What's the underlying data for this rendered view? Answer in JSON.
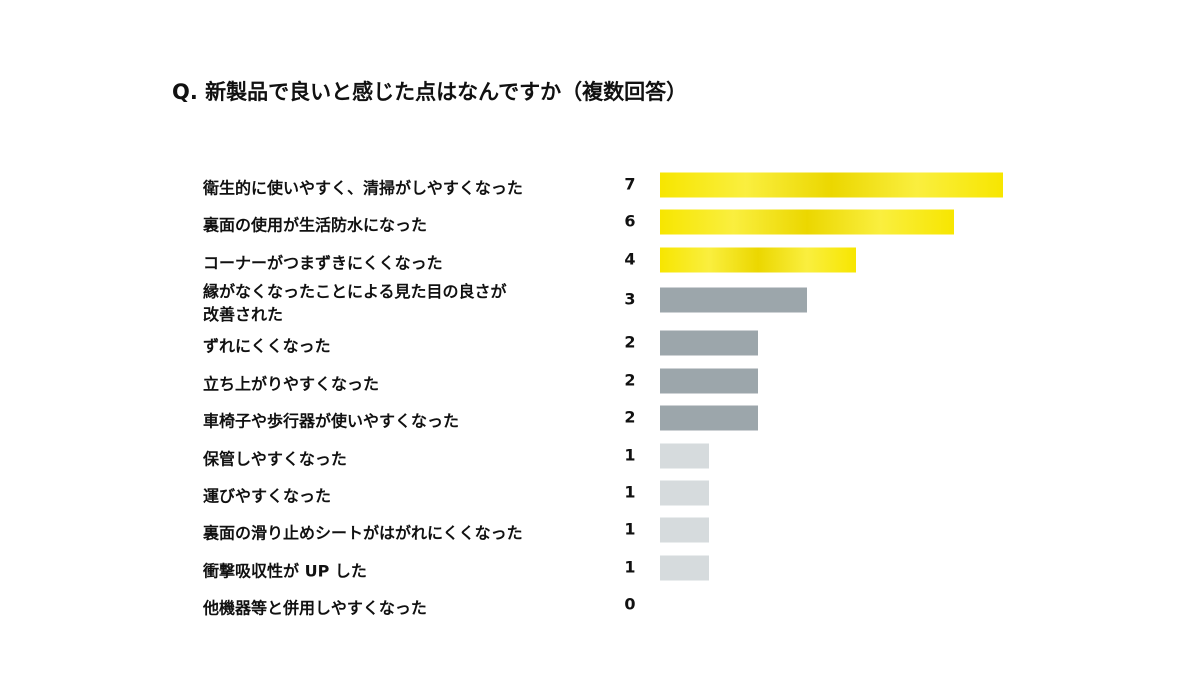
{
  "chart_data": {
    "type": "bar",
    "orientation": "horizontal",
    "title": "Q. 新製品で良いと感じた点はなんですか（複数回答）",
    "categories": [
      "衛生的に使いやすく、清掃がしやすくなった",
      "裏面の使用が生活防水になった",
      "コーナーがつまずきにくくなった",
      "縁がなくなったことによる見た目の良さが改善された",
      "ずれにくくなった",
      "立ち上がりやすくなった",
      "車椅子や歩行器が使いやすくなった",
      "保管しやすくなった",
      "運びやすくなった",
      "裏面の滑り止めシートがはがれにくくなった",
      "衝撃吸収性が UP した",
      "他機器等と併用しやすくなった"
    ],
    "values": [
      7,
      6,
      4,
      3,
      2,
      2,
      2,
      1,
      1,
      1,
      1,
      0
    ],
    "colors": [
      "#f7e600",
      "#f7e600",
      "#f7e600",
      "#9ca6ab",
      "#9ca6ab",
      "#9ca6ab",
      "#9ca6ab",
      "#d6dbdd",
      "#d6dbdd",
      "#d6dbdd",
      "#d6dbdd",
      "#d6dbdd"
    ]
  }
}
